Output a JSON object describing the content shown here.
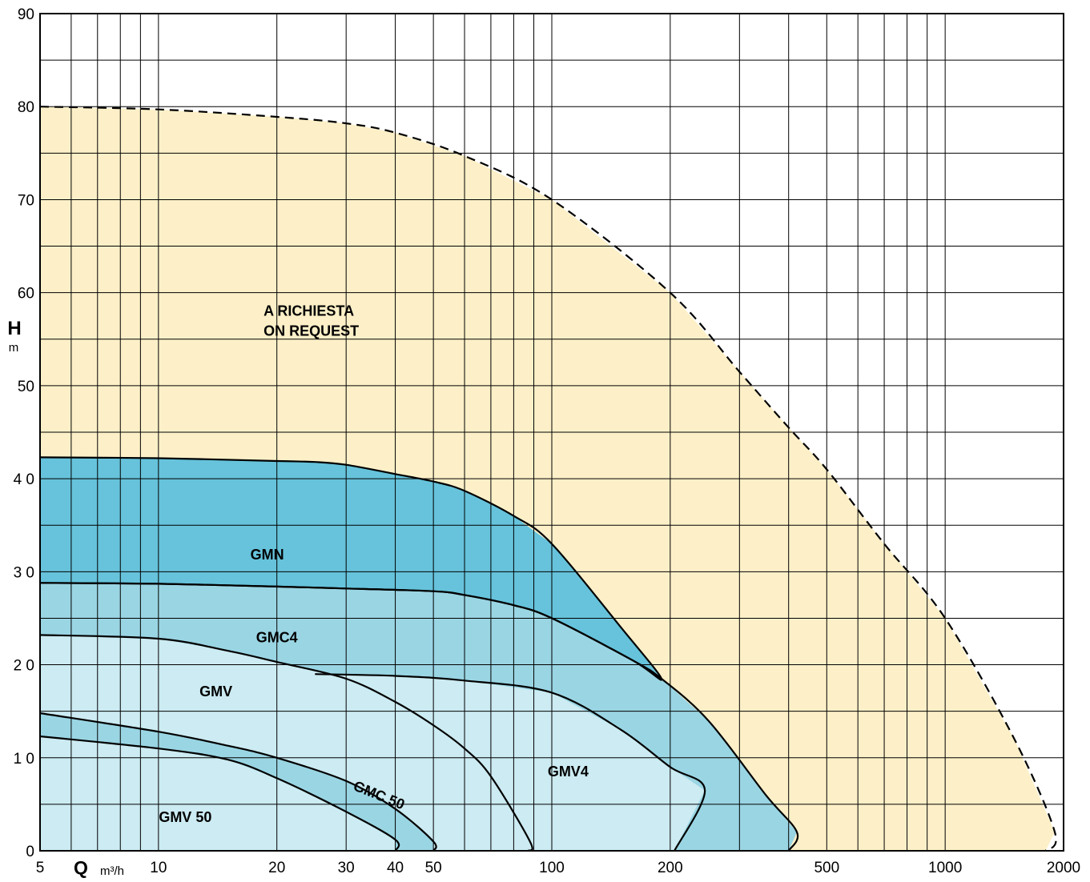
{
  "chart_data": {
    "type": "area",
    "x_scale": "log",
    "y_scale": "linear",
    "xlim": [
      5,
      2000
    ],
    "ylim": [
      0,
      90
    ],
    "grid": true,
    "x_ticks": [
      5,
      10,
      20,
      30,
      40,
      50,
      100,
      200,
      500,
      1000,
      2000
    ],
    "x_tick_labels": [
      "5",
      "10",
      "20",
      "30",
      "40",
      "50",
      "100",
      "200",
      "500",
      "1000",
      "2000"
    ],
    "x_minor_grid": [
      6,
      7,
      8,
      9,
      60,
      70,
      80,
      90,
      300,
      400,
      600,
      700,
      800,
      900
    ],
    "y_ticks": [
      0,
      10,
      20,
      30,
      40,
      50,
      60,
      70,
      80,
      90
    ],
    "y_tick_labels": [
      "0",
      "1 0",
      "2 0",
      "3 0",
      "4 0",
      "50",
      "60",
      "70",
      "80",
      "90"
    ],
    "y_minor_grid": [
      5,
      15,
      25,
      35,
      45,
      55,
      65,
      75,
      85
    ],
    "xlabel": "Q",
    "xlabel_unit": "m³/h",
    "ylabel": "H",
    "ylabel_unit": "m",
    "regions": [
      {
        "label": "A RICHIESTA\nON REQUEST",
        "label_lines": [
          "A RICHIESTA",
          "ON REQUEST"
        ],
        "fill": "#FDF0C8",
        "boundary_dashed": true,
        "label_at": [
          18.5,
          57.5
        ],
        "points": [
          [
            5,
            80
          ],
          [
            10,
            79.7
          ],
          [
            20,
            78.9
          ],
          [
            30,
            78.2
          ],
          [
            40,
            77.2
          ],
          [
            60,
            74.7
          ],
          [
            100,
            70
          ],
          [
            200,
            60
          ],
          [
            300,
            51.5
          ],
          [
            400,
            45.5
          ],
          [
            500,
            41
          ],
          [
            700,
            33
          ],
          [
            1000,
            25
          ],
          [
            1500,
            12
          ],
          [
            1900,
            2
          ],
          [
            1800,
            0
          ],
          [
            5,
            0
          ]
        ]
      },
      {
        "label": "GMN",
        "fill": "#66C3DB",
        "boundary_dashed": false,
        "label_at": [
          18.9,
          31.3
        ],
        "points": [
          [
            5,
            42.3
          ],
          [
            10,
            42.2
          ],
          [
            20,
            41.9
          ],
          [
            25,
            41.8
          ],
          [
            30,
            41.5
          ],
          [
            40,
            40.5
          ],
          [
            50,
            39.7
          ],
          [
            60,
            38.7
          ],
          [
            80,
            36
          ],
          [
            100,
            33
          ],
          [
            150,
            24
          ],
          [
            190,
            18.5
          ],
          [
            160,
            20.5
          ],
          [
            100,
            25
          ],
          [
            80,
            26.4
          ],
          [
            60,
            27.5
          ],
          [
            50,
            27.9
          ],
          [
            30,
            28.2
          ],
          [
            20,
            28.4
          ],
          [
            10,
            28.7
          ],
          [
            5,
            28.8
          ]
        ]
      },
      {
        "label": "GMC4",
        "fill": "#9AD5E3",
        "boundary_dashed": false,
        "label_at": [
          20,
          22.4
        ],
        "points": [
          [
            5,
            28.8
          ],
          [
            10,
            28.7
          ],
          [
            20,
            28.4
          ],
          [
            30,
            28.2
          ],
          [
            50,
            27.9
          ],
          [
            60,
            27.5
          ],
          [
            80,
            26.4
          ],
          [
            100,
            25
          ],
          [
            160,
            20.5
          ],
          [
            190,
            18.5
          ],
          [
            250,
            14
          ],
          [
            350,
            6
          ],
          [
            420,
            2
          ],
          [
            400,
            0
          ],
          [
            5,
            0
          ]
        ]
      },
      {
        "label": "GMV",
        "fill": "#CCEBF2",
        "boundary_dashed": false,
        "label_at": [
          14,
          16.6
        ],
        "points": [
          [
            5,
            23.2
          ],
          [
            10,
            22.8
          ],
          [
            15,
            21.5
          ],
          [
            20,
            20.3
          ],
          [
            30,
            18.5
          ],
          [
            40,
            16
          ],
          [
            50,
            13.5
          ],
          [
            60,
            11
          ],
          [
            70,
            8
          ],
          [
            88,
            1
          ],
          [
            87,
            0
          ],
          [
            5,
            0
          ]
        ]
      },
      {
        "label": "GMV4",
        "fill": "#CCEBF2",
        "boundary_dashed": false,
        "label_at": [
          110,
          8
        ],
        "points": [
          [
            25,
            19
          ],
          [
            40,
            18.8
          ],
          [
            60,
            18.3
          ],
          [
            100,
            17
          ],
          [
            150,
            13
          ],
          [
            200,
            9
          ],
          [
            245,
            6.5
          ],
          [
            205,
            0
          ],
          [
            85,
            0
          ],
          [
            88,
            1
          ],
          [
            70,
            8
          ],
          [
            40,
            16
          ],
          [
            30,
            18.5
          ],
          [
            25,
            19
          ]
        ]
      },
      {
        "label": "GMC 50",
        "fill": "#9AD5E3",
        "boundary_dashed": false,
        "label_at": [
          36,
          5.5
        ],
        "label_rotation": 22,
        "points": [
          [
            5,
            14.8
          ],
          [
            10,
            12.8
          ],
          [
            15,
            11.3
          ],
          [
            20,
            10
          ],
          [
            30,
            7.5
          ],
          [
            40,
            4.5
          ],
          [
            50,
            1
          ],
          [
            50,
            0
          ],
          [
            5,
            0
          ]
        ]
      },
      {
        "label": "GMV 50",
        "fill": "#CCEBF2",
        "boundary_dashed": false,
        "label_at": [
          11.7,
          3.1
        ],
        "points": [
          [
            5,
            12.3
          ],
          [
            10,
            11
          ],
          [
            15,
            9.8
          ],
          [
            20,
            7.8
          ],
          [
            30,
            4.2
          ],
          [
            40,
            1.2
          ],
          [
            40,
            0
          ],
          [
            5,
            0
          ]
        ]
      }
    ]
  }
}
